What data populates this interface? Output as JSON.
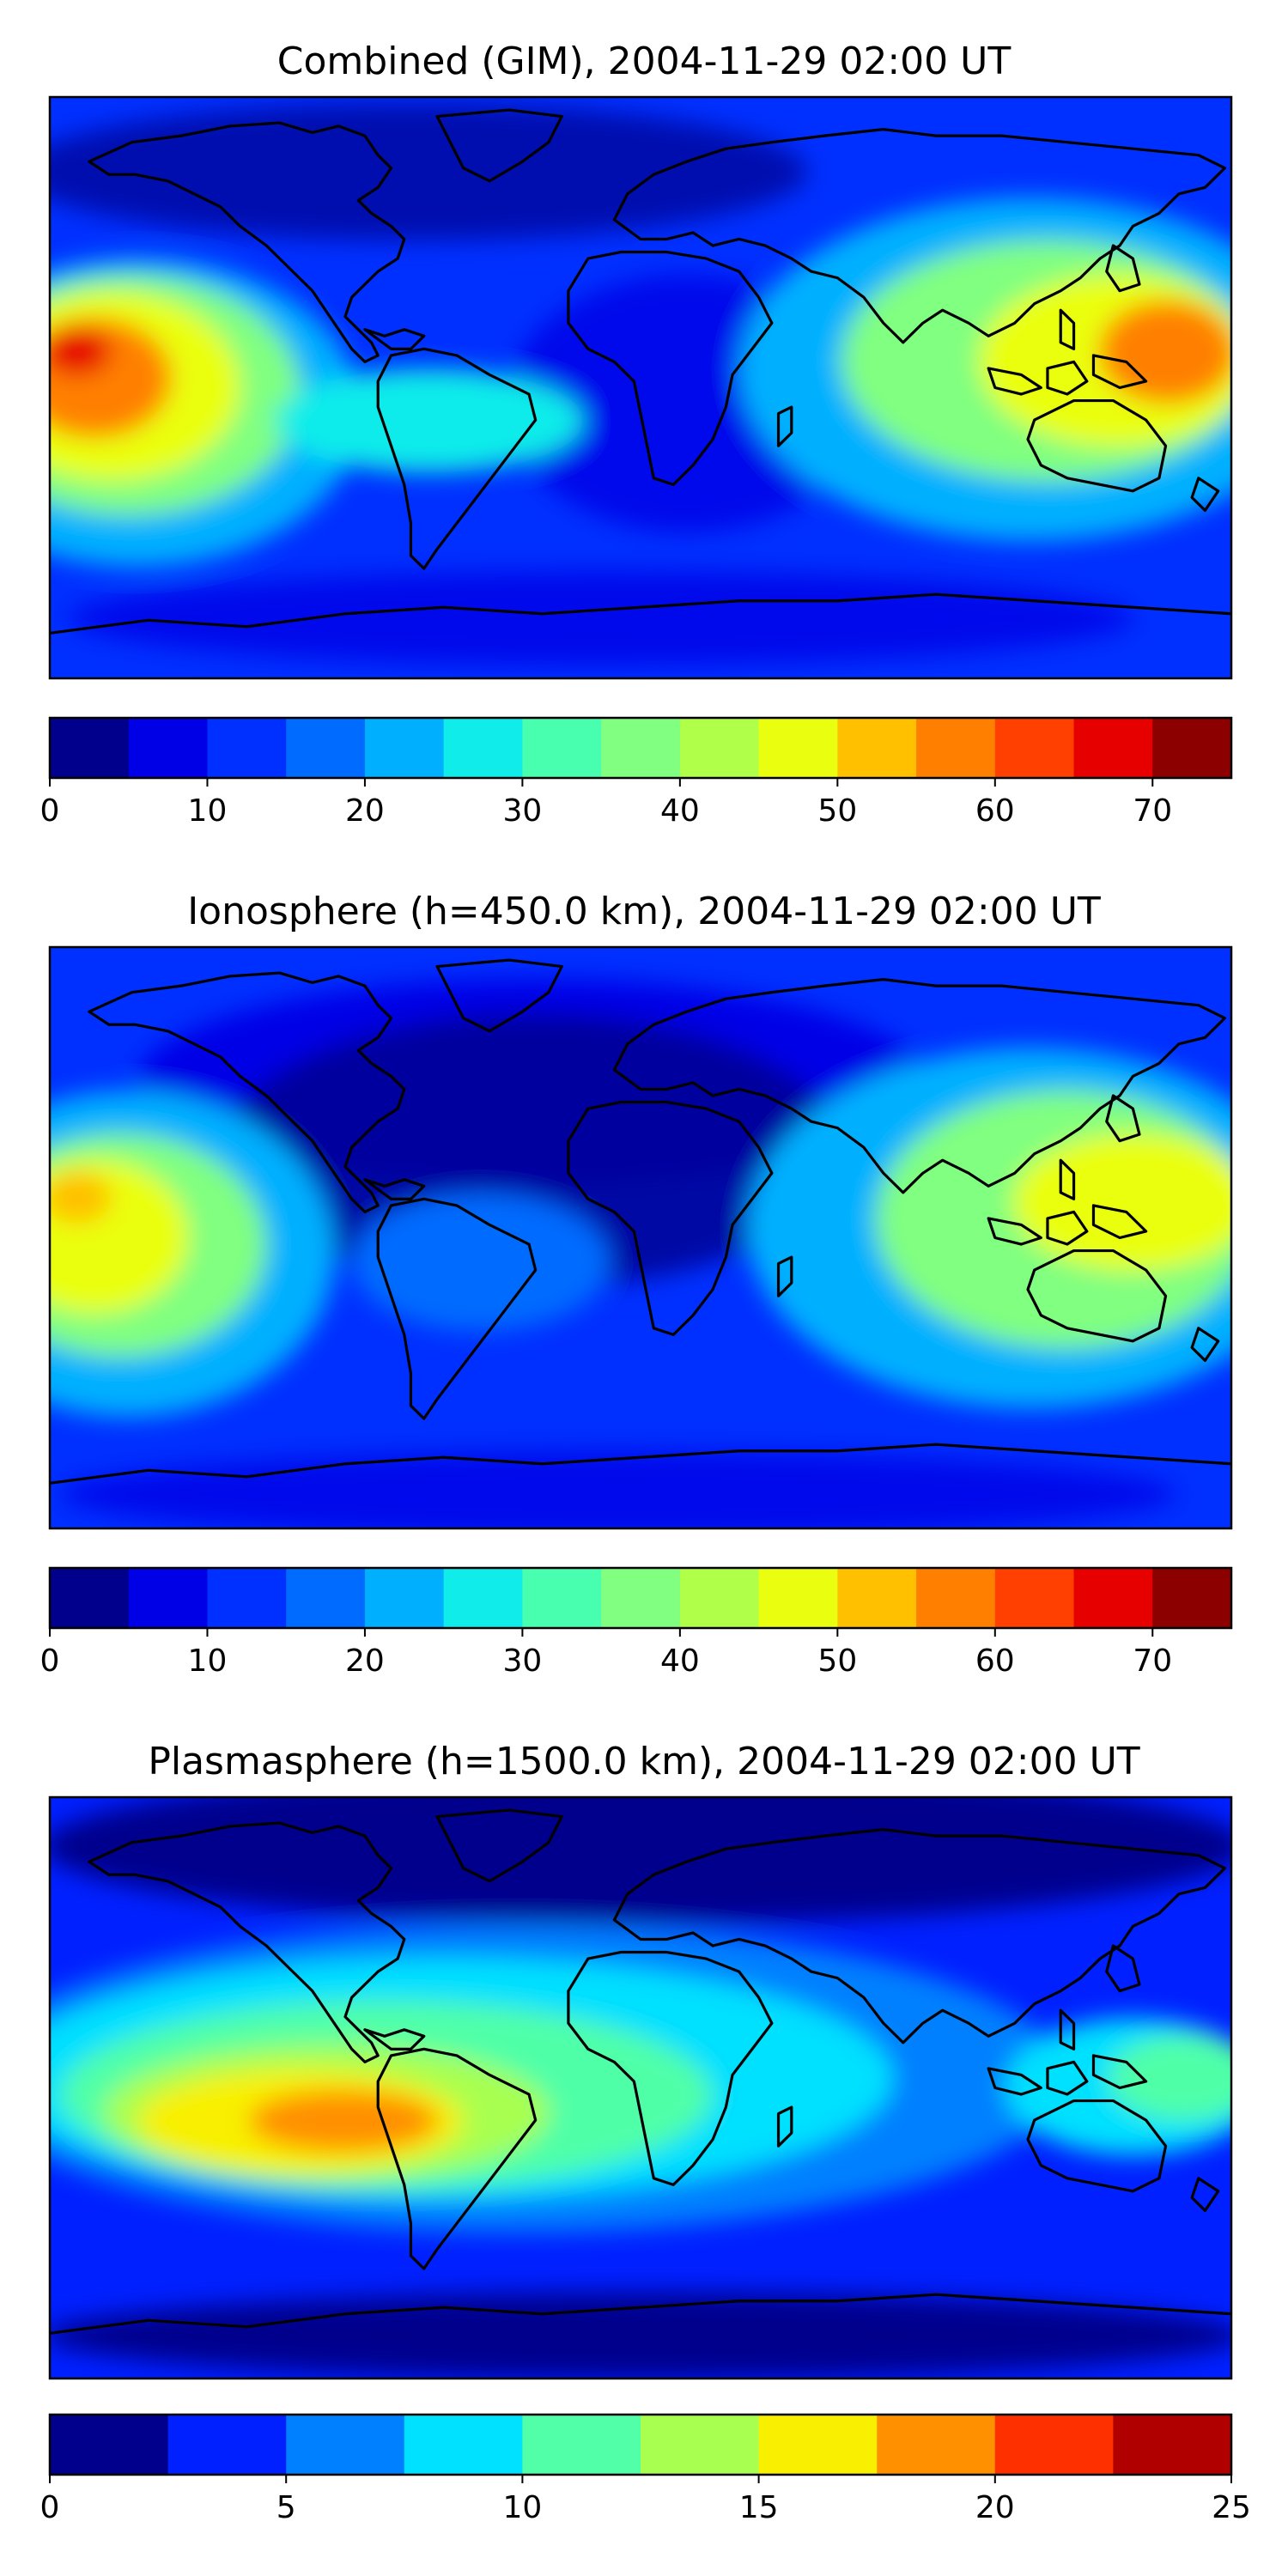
{
  "panels": [
    {
      "id": "combined",
      "title": "Combined (GIM), 2004-11-29 02:00 UT",
      "colorbar": {
        "levels": [
          0,
          5,
          10,
          15,
          20,
          25,
          30,
          35,
          40,
          45,
          50,
          55,
          60,
          65,
          70,
          75
        ],
        "colors": [
          "#00008d",
          "#0000e6",
          "#0030ff",
          "#006cff",
          "#00b0ff",
          "#10ecea",
          "#48ffb0",
          "#80ff80",
          "#b0ff48",
          "#eaff10",
          "#ffc000",
          "#ff8000",
          "#ff4000",
          "#e60000",
          "#8d0000"
        ],
        "tick_values": [
          0,
          10,
          20,
          30,
          40,
          50,
          60,
          70
        ],
        "tick_labels": [
          "0",
          "10",
          "20",
          "30",
          "40",
          "50",
          "60",
          "70"
        ]
      }
    },
    {
      "id": "ionosphere",
      "title": "Ionosphere  (h=450.0 km), 2004-11-29 02:00 UT",
      "colorbar": {
        "levels": [
          0,
          5,
          10,
          15,
          20,
          25,
          30,
          35,
          40,
          45,
          50,
          55,
          60,
          65,
          70,
          75
        ],
        "colors": [
          "#00008d",
          "#0000e6",
          "#0030ff",
          "#006cff",
          "#00b0ff",
          "#10ecea",
          "#48ffb0",
          "#80ff80",
          "#b0ff48",
          "#eaff10",
          "#ffc000",
          "#ff8000",
          "#ff4000",
          "#e60000",
          "#8d0000"
        ],
        "tick_values": [
          0,
          10,
          20,
          30,
          40,
          50,
          60,
          70
        ],
        "tick_labels": [
          "0",
          "10",
          "20",
          "30",
          "40",
          "50",
          "60",
          "70"
        ]
      }
    },
    {
      "id": "plasmasphere",
      "title": "Plasmasphere (h=1500.0 km), 2004-11-29 02:00 UT",
      "colorbar": {
        "levels": [
          0,
          2.5,
          5,
          7.5,
          10,
          12.5,
          15,
          17.5,
          20,
          22.5,
          25
        ],
        "colors": [
          "#00008d",
          "#0020ff",
          "#0080ff",
          "#00e0ff",
          "#50ffa8",
          "#a8ff50",
          "#f8f000",
          "#ff9000",
          "#ff3000",
          "#b00000"
        ],
        "tick_values": [
          0,
          5,
          10,
          15,
          20,
          25
        ],
        "tick_labels": [
          "0",
          "5",
          "10",
          "15",
          "20",
          "25"
        ]
      }
    }
  ]
}
